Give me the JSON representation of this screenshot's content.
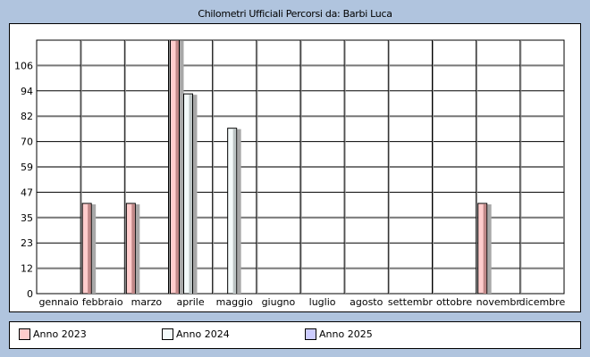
{
  "chart_data": {
    "type": "bar",
    "title": "Chilometri Ufficiali Percorsi da: Barbi Luca",
    "categories": [
      "gennaio",
      "febbraio",
      "marzo",
      "aprile",
      "maggio",
      "giugno",
      "luglio",
      "agosto",
      "settembr",
      "ottobre",
      "novembr",
      "dicembre"
    ],
    "y_ticks": [
      "0",
      "12",
      "23",
      "35",
      "47",
      "59",
      "70",
      "82",
      "94",
      "106"
    ],
    "ylim": [
      0,
      118
    ],
    "grid": true,
    "legend_position": "bottom",
    "series": [
      {
        "name": "Anno 2023",
        "color": "#ffcccc",
        "values": [
          0,
          42,
          42,
          118,
          0,
          0,
          0,
          0,
          0,
          0,
          42,
          0
        ]
      },
      {
        "name": "Anno 2024",
        "color": "#f4fafa",
        "values": [
          0,
          0,
          0,
          93,
          77,
          0,
          0,
          0,
          0,
          0,
          0,
          0
        ]
      },
      {
        "name": "Anno 2025",
        "color": "#ccccff",
        "values": [
          0,
          0,
          0,
          0,
          0,
          0,
          0,
          0,
          0,
          0,
          0,
          0
        ]
      }
    ]
  }
}
